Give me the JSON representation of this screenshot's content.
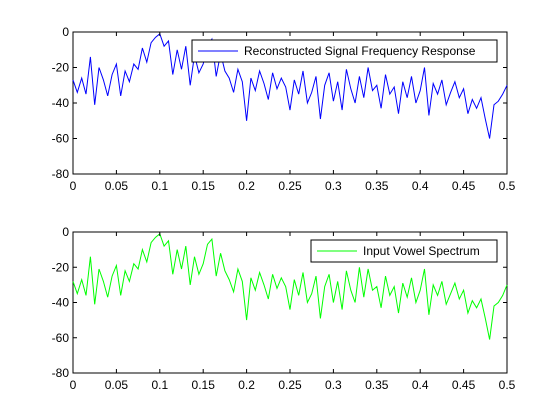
{
  "chart_data": [
    {
      "type": "line",
      "xlim": [
        0,
        0.5
      ],
      "ylim": [
        -80,
        0
      ],
      "xticks": [
        "0",
        "0.05",
        "0.1",
        "0.15",
        "0.2",
        "0.25",
        "0.3",
        "0.35",
        "0.4",
        "0.45",
        "0.5"
      ],
      "yticks": [
        "0",
        "-20",
        "-40",
        "-60",
        "-80"
      ],
      "grid": false,
      "legend_position": "top-right",
      "series": [
        {
          "name": "Reconstructed Signal Frequency Response",
          "color": "#0000ff",
          "x": [
            0,
            0.005,
            0.01,
            0.015,
            0.02,
            0.025,
            0.03,
            0.035,
            0.04,
            0.045,
            0.05,
            0.055,
            0.06,
            0.065,
            0.07,
            0.075,
            0.08,
            0.085,
            0.09,
            0.095,
            0.1,
            0.105,
            0.11,
            0.115,
            0.12,
            0.125,
            0.13,
            0.135,
            0.14,
            0.145,
            0.15,
            0.155,
            0.16,
            0.165,
            0.17,
            0.175,
            0.18,
            0.185,
            0.19,
            0.195,
            0.2,
            0.205,
            0.21,
            0.215,
            0.22,
            0.225,
            0.23,
            0.235,
            0.24,
            0.245,
            0.25,
            0.255,
            0.26,
            0.265,
            0.27,
            0.275,
            0.28,
            0.285,
            0.29,
            0.295,
            0.3,
            0.305,
            0.31,
            0.315,
            0.32,
            0.325,
            0.33,
            0.335,
            0.34,
            0.345,
            0.35,
            0.355,
            0.36,
            0.365,
            0.37,
            0.375,
            0.38,
            0.385,
            0.39,
            0.395,
            0.4,
            0.405,
            0.41,
            0.415,
            0.42,
            0.425,
            0.43,
            0.435,
            0.44,
            0.445,
            0.45,
            0.455,
            0.46,
            0.465,
            0.47,
            0.475,
            0.48,
            0.485,
            0.49,
            0.495,
            0.5
          ],
          "y": [
            -27,
            -34,
            -26,
            -35,
            -14,
            -41,
            -20,
            -27,
            -36,
            -24,
            -18,
            -36,
            -22,
            -28,
            -18,
            -21,
            -9,
            -17,
            -6,
            -3,
            -1,
            -8,
            -5,
            -24,
            -10,
            -21,
            -8,
            -30,
            -13,
            -23,
            -18,
            -8,
            -4,
            -25,
            -12,
            -22,
            -26,
            -34,
            -21,
            -28,
            -50,
            -26,
            -33,
            -22,
            -29,
            -38,
            -23,
            -32,
            -26,
            -31,
            -44,
            -27,
            -35,
            -22,
            -40,
            -34,
            -25,
            -49,
            -30,
            -23,
            -39,
            -28,
            -44,
            -21,
            -32,
            -40,
            -25,
            -37,
            -20,
            -33,
            -30,
            -43,
            -24,
            -35,
            -31,
            -46,
            -28,
            -37,
            -25,
            -40,
            -33,
            -20,
            -47,
            -29,
            -35,
            -27,
            -41,
            -34,
            -28,
            -37,
            -32,
            -46,
            -38,
            -43,
            -37,
            -49,
            -60,
            -41,
            -39,
            -35,
            -30
          ]
        }
      ]
    },
    {
      "type": "line",
      "xlim": [
        0,
        0.5
      ],
      "ylim": [
        -80,
        0
      ],
      "xticks": [
        "0",
        "0.05",
        "0.1",
        "0.15",
        "0.2",
        "0.25",
        "0.3",
        "0.35",
        "0.4",
        "0.45",
        "0.5"
      ],
      "yticks": [
        "0",
        "-20",
        "-40",
        "-60",
        "-80"
      ],
      "grid": false,
      "legend_position": "top-right",
      "series": [
        {
          "name": "Input Vowel Spectrum",
          "color": "#00ff00",
          "x": [
            0,
            0.005,
            0.01,
            0.015,
            0.02,
            0.025,
            0.03,
            0.035,
            0.04,
            0.045,
            0.05,
            0.055,
            0.06,
            0.065,
            0.07,
            0.075,
            0.08,
            0.085,
            0.09,
            0.095,
            0.1,
            0.105,
            0.11,
            0.115,
            0.12,
            0.125,
            0.13,
            0.135,
            0.14,
            0.145,
            0.15,
            0.155,
            0.16,
            0.165,
            0.17,
            0.175,
            0.18,
            0.185,
            0.19,
            0.195,
            0.2,
            0.205,
            0.21,
            0.215,
            0.22,
            0.225,
            0.23,
            0.235,
            0.24,
            0.245,
            0.25,
            0.255,
            0.26,
            0.265,
            0.27,
            0.275,
            0.28,
            0.285,
            0.29,
            0.295,
            0.3,
            0.305,
            0.31,
            0.315,
            0.32,
            0.325,
            0.33,
            0.335,
            0.34,
            0.345,
            0.35,
            0.355,
            0.36,
            0.365,
            0.37,
            0.375,
            0.38,
            0.385,
            0.39,
            0.395,
            0.4,
            0.405,
            0.41,
            0.415,
            0.42,
            0.425,
            0.43,
            0.435,
            0.44,
            0.445,
            0.45,
            0.455,
            0.46,
            0.465,
            0.47,
            0.475,
            0.48,
            0.485,
            0.49,
            0.495,
            0.5
          ],
          "y": [
            -28,
            -35,
            -27,
            -36,
            -14,
            -41,
            -21,
            -28,
            -37,
            -25,
            -19,
            -36,
            -22,
            -28,
            -18,
            -21,
            -10,
            -17,
            -6,
            -3,
            -1,
            -8,
            -5,
            -24,
            -10,
            -21,
            -8,
            -30,
            -14,
            -24,
            -18,
            -7,
            -4,
            -25,
            -12,
            -22,
            -27,
            -34,
            -21,
            -28,
            -50,
            -26,
            -33,
            -23,
            -30,
            -38,
            -24,
            -32,
            -26,
            -31,
            -44,
            -27,
            -36,
            -23,
            -40,
            -35,
            -25,
            -49,
            -31,
            -24,
            -40,
            -28,
            -44,
            -22,
            -33,
            -40,
            -20,
            -37,
            -21,
            -33,
            -31,
            -43,
            -25,
            -36,
            -31,
            -46,
            -29,
            -37,
            -26,
            -40,
            -33,
            -21,
            -47,
            -30,
            -36,
            -28,
            -41,
            -35,
            -29,
            -38,
            -33,
            -46,
            -39,
            -43,
            -38,
            -49,
            -61,
            -42,
            -40,
            -36,
            -30
          ]
        }
      ]
    }
  ]
}
